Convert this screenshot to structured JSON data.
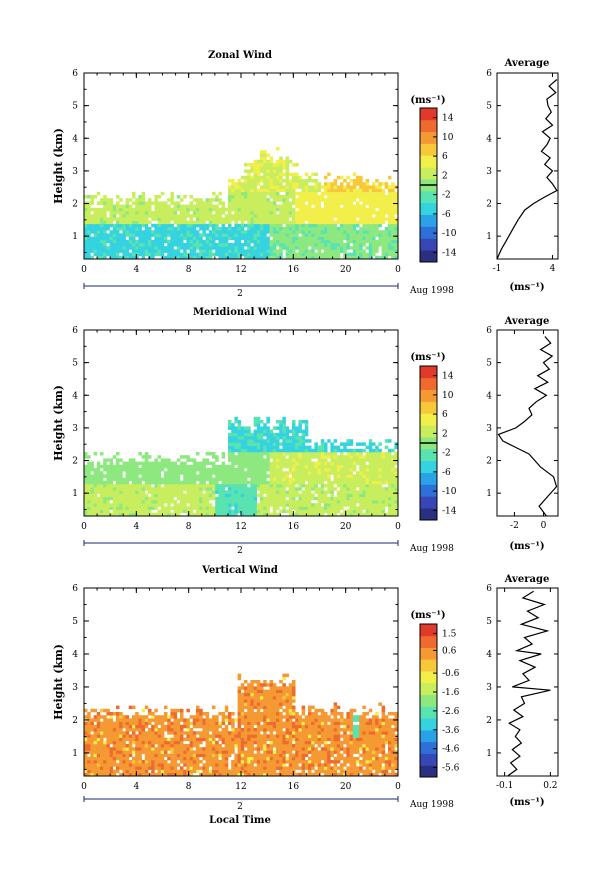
{
  "figure": {
    "date_label": "Aug 1998",
    "xlabel_bottom": "Local Time",
    "ylabel": "Height (km)",
    "unit_label": "(ms⁻¹)",
    "avg_title": "Average"
  },
  "chart_data": [
    {
      "type": "heatmap",
      "title": "Zonal Wind",
      "ylabel": "Height (km)",
      "x_ticks": [
        "0",
        "4",
        "8",
        "12",
        "16",
        "20",
        "0"
      ],
      "day_label": "2",
      "date_label": "Aug 1998",
      "y_ticks": [
        "1",
        "2",
        "3",
        "4",
        "5",
        "6"
      ],
      "xlim": [
        0,
        24
      ],
      "ylim": [
        0.3,
        6
      ],
      "colorbar": {
        "unit": "(ms⁻¹)",
        "ticks": [
          "14",
          "10",
          "6",
          "2",
          "-2",
          "-6",
          "-10",
          "-14"
        ],
        "range": [
          -16,
          16
        ],
        "zero_line": 0
      },
      "description_values": {
        "low_level_0_to_1.5km": -3,
        "mid_level_1.5_to_2.5km": 2,
        "afternoon_2_to_3km": 5
      },
      "average_profile": {
        "xlim": [
          -1,
          4.5
        ],
        "x_ticks": [
          "-1",
          "4"
        ],
        "xlabel": "(ms⁻¹)",
        "height": [
          0.3,
          0.6,
          0.9,
          1.2,
          1.5,
          1.8,
          2.0,
          2.2,
          2.4,
          2.6,
          2.8,
          3.0,
          3.2,
          3.4,
          3.6,
          3.8,
          4.0,
          4.2,
          4.4,
          4.6,
          4.8,
          5.0,
          5.2,
          5.4,
          5.6,
          5.8
        ],
        "value": [
          -1.0,
          -0.6,
          -0.1,
          0.4,
          0.9,
          1.5,
          2.3,
          3.3,
          4.4,
          4.0,
          3.5,
          4.0,
          3.3,
          3.8,
          3.0,
          3.5,
          3.8,
          3.1,
          4.0,
          3.4,
          3.9,
          3.6,
          3.5,
          4.3,
          3.7,
          4.4
        ]
      }
    },
    {
      "type": "heatmap",
      "title": "Meridional Wind",
      "ylabel": "Height (km)",
      "x_ticks": [
        "0",
        "4",
        "8",
        "12",
        "16",
        "20",
        "0"
      ],
      "day_label": "2",
      "date_label": "Aug 1998",
      "y_ticks": [
        "1",
        "2",
        "3",
        "4",
        "5",
        "6"
      ],
      "xlim": [
        0,
        24
      ],
      "ylim": [
        0.3,
        6
      ],
      "colorbar": {
        "unit": "(ms⁻¹)",
        "ticks": [
          "14",
          "10",
          "6",
          "2",
          "-2",
          "-6",
          "-10",
          "-14"
        ],
        "range": [
          -16,
          16
        ],
        "zero_line": 0
      },
      "description_values": {
        "low_level_0_to_1km": 1,
        "mid_level_1.5_to_2.5km": -2,
        "upper_2.5_to_3.5km": -4
      },
      "average_profile": {
        "xlim": [
          -3.2,
          1.0
        ],
        "x_ticks": [
          "-2",
          "0"
        ],
        "xlabel": "(ms⁻¹)",
        "height": [
          0.3,
          0.6,
          0.9,
          1.2,
          1.5,
          1.8,
          2.0,
          2.2,
          2.4,
          2.6,
          2.8,
          3.0,
          3.2,
          3.4,
          3.6,
          3.8,
          4.0,
          4.2,
          4.4,
          4.6,
          4.8,
          5.0,
          5.2,
          5.4,
          5.6,
          5.8
        ],
        "value": [
          0.2,
          -0.3,
          0.3,
          0.9,
          0.7,
          -0.2,
          -0.6,
          -1.0,
          -1.9,
          -2.8,
          -3.1,
          -1.9,
          -1.3,
          -0.8,
          -1.0,
          -0.5,
          0.2,
          -0.6,
          0.3,
          -0.4,
          0.4,
          0.0,
          0.6,
          -0.2,
          0.5,
          0.1
        ]
      }
    },
    {
      "type": "heatmap",
      "title": "Vertical Wind",
      "ylabel": "Height (km)",
      "xlabel": "Local Time",
      "x_ticks": [
        "0",
        "4",
        "8",
        "12",
        "16",
        "20",
        "0"
      ],
      "day_label": "2",
      "date_label": "Aug 1998",
      "y_ticks": [
        "1",
        "2",
        "3",
        "4",
        "5",
        "6"
      ],
      "xlim": [
        0,
        24
      ],
      "ylim": [
        0.3,
        6
      ],
      "colorbar": {
        "unit": "(ms⁻¹)",
        "ticks": [
          "1.5",
          "0.6",
          "-0.6",
          "-1.6",
          "-2.6",
          "-3.6",
          "-4.6",
          "-5.6"
        ],
        "range": [
          -6.1,
          2.0
        ]
      },
      "description_values": {
        "typical_0_to_2.5km": 0.3
      },
      "average_profile": {
        "xlim": [
          -0.15,
          0.25
        ],
        "x_ticks": [
          "-0.1",
          "0.2"
        ],
        "xlabel": "(ms⁻¹)",
        "height": [
          0.3,
          0.5,
          0.7,
          0.9,
          1.1,
          1.3,
          1.5,
          1.7,
          1.9,
          2.1,
          2.3,
          2.5,
          2.7,
          2.9,
          3.0,
          3.2,
          3.4,
          3.6,
          3.8,
          4.0,
          4.1,
          4.3,
          4.5,
          4.7,
          4.9,
          5.1,
          5.3,
          5.5,
          5.7,
          5.9
        ],
        "value": [
          -0.08,
          -0.02,
          -0.06,
          0.0,
          -0.05,
          0.01,
          -0.03,
          0.0,
          -0.07,
          0.02,
          -0.04,
          0.03,
          0.01,
          0.2,
          -0.05,
          0.06,
          0.02,
          0.1,
          0.0,
          0.14,
          -0.02,
          0.08,
          0.03,
          0.18,
          0.01,
          0.12,
          0.05,
          0.16,
          0.02,
          0.09
        ]
      }
    }
  ]
}
